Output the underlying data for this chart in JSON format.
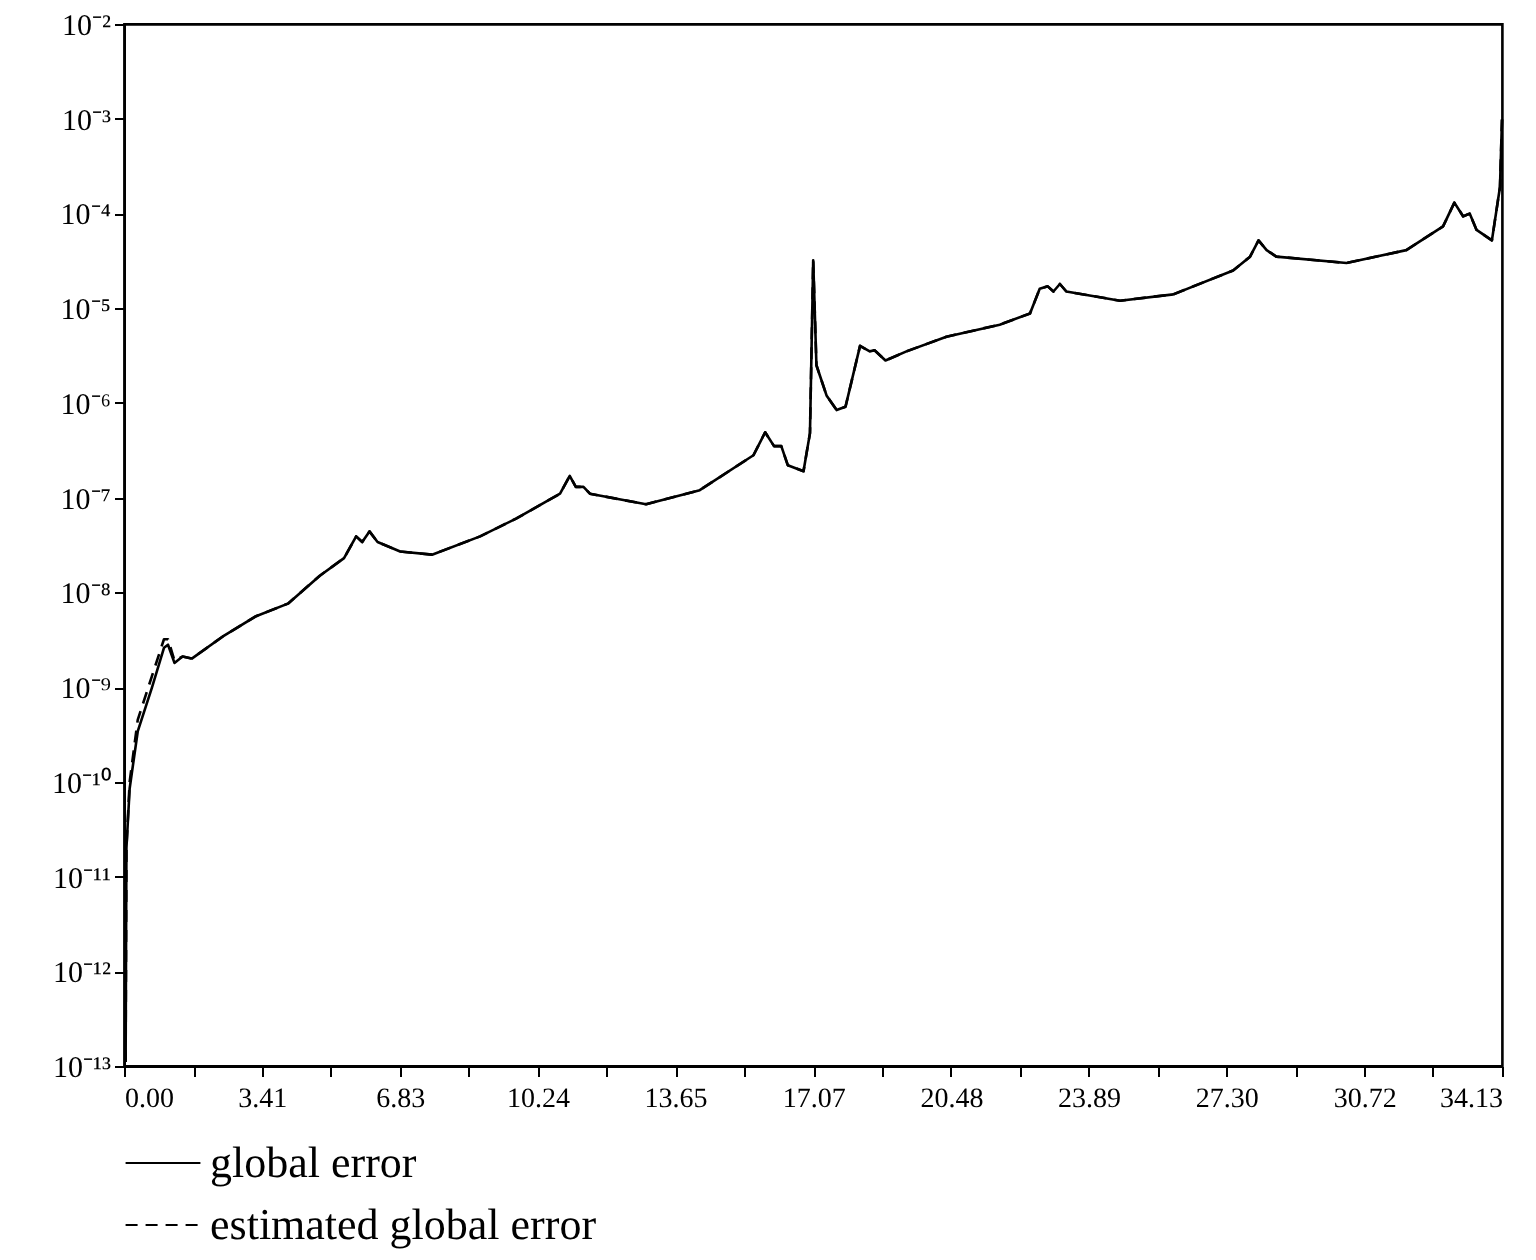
{
  "chart_data": {
    "type": "line",
    "x": [
      0.04,
      0.06,
      0.14,
      0.34,
      0.69,
      0.99,
      1.09,
      1.25,
      1.45,
      1.68,
      2.48,
      3.27,
      4.06,
      4.85,
      5.45,
      5.75,
      5.9,
      6.08,
      6.28,
      6.84,
      7.63,
      8.82,
      9.71,
      10.8,
      11.04,
      11.19,
      11.38,
      11.54,
      12.93,
      14.26,
      15.59,
      15.88,
      16.1,
      16.28,
      16.44,
      16.83,
      16.99,
      17.07,
      17.15,
      17.4,
      17.65,
      17.87,
      18.23,
      18.47,
      18.59,
      18.86,
      19.38,
      20.37,
      21.69,
      22.44,
      22.68,
      22.88,
      23.02,
      23.18,
      23.34,
      24.67,
      25.99,
      27.47,
      27.89,
      28.1,
      28.3,
      28.54,
      30.28,
      31.76,
      32.67,
      32.95,
      33.17,
      33.33,
      33.5,
      33.88,
      34.08,
      34.13
    ],
    "series": [
      {
        "name": "global error",
        "color": "#000000",
        "line_style": "solid",
        "values": [
          1.1e-13,
          2e-11,
          8.5e-11,
          3.4e-10,
          9.8e-10,
          2.6e-09,
          2.8e-09,
          1.8e-09,
          2.1e-09,
          2e-09,
          3.5e-09,
          5.6e-09,
          7.6e-09,
          1.5e-08,
          2.3e-08,
          3.9e-08,
          3.4e-08,
          4.4e-08,
          3.4e-08,
          2.7e-08,
          2.5e-08,
          3.9e-08,
          6e-08,
          1.1e-07,
          1.7e-07,
          1.3e-07,
          1.3e-07,
          1.1e-07,
          8.5e-08,
          1.2e-07,
          2.8e-07,
          4.9e-07,
          3.5e-07,
          3.5e-07,
          2.2e-07,
          1.9e-07,
          4.8e-07,
          3.2e-05,
          2.5e-06,
          1.2e-06,
          8.4e-07,
          9.1e-07,
          4e-06,
          3.5e-06,
          3.6e-06,
          2.8e-06,
          3.5e-06,
          5e-06,
          6.7e-06,
          8.8e-06,
          1.6e-05,
          1.7e-05,
          1.5e-05,
          1.8e-05,
          1.5e-05,
          1.2e-05,
          1.4e-05,
          2.5e-05,
          3.5e-05,
          5.2e-05,
          4.1e-05,
          3.5e-05,
          3e-05,
          4.1e-05,
          7.3e-05,
          0.00013,
          9.3e-05,
          0.0001,
          6.7e-05,
          5.2e-05,
          0.00019,
          0.00098
        ]
      },
      {
        "name": "estimated global error",
        "color": "#000000",
        "line_style": "dashed",
        "values": [
          1.1e-13,
          2e-11,
          1e-10,
          4.5e-10,
          1.3e-09,
          3.2e-09,
          3.2e-09,
          1.9e-09,
          2.1e-09,
          2e-09,
          3.5e-09,
          5.6e-09,
          7.6e-09,
          1.5e-08,
          2.3e-08,
          3.9e-08,
          3.4e-08,
          4.4e-08,
          3.4e-08,
          2.7e-08,
          2.5e-08,
          3.9e-08,
          6e-08,
          1.1e-07,
          1.7e-07,
          1.3e-07,
          1.3e-07,
          1.1e-07,
          8.5e-08,
          1.2e-07,
          2.8e-07,
          4.9e-07,
          3.5e-07,
          3.5e-07,
          2.2e-07,
          1.9e-07,
          4.8e-07,
          3.2e-05,
          2.5e-06,
          1.2e-06,
          8.4e-07,
          9.1e-07,
          4e-06,
          3.5e-06,
          3.6e-06,
          2.8e-06,
          3.5e-06,
          5e-06,
          6.7e-06,
          8.8e-06,
          1.6e-05,
          1.7e-05,
          1.5e-05,
          1.8e-05,
          1.5e-05,
          1.2e-05,
          1.4e-05,
          2.5e-05,
          3.5e-05,
          5.2e-05,
          4.1e-05,
          3.5e-05,
          3e-05,
          4.1e-05,
          7.3e-05,
          0.00013,
          9.3e-05,
          0.0001,
          6.7e-05,
          5.2e-05,
          0.00019,
          0.00098
        ]
      }
    ],
    "log": "y",
    "xlim": [
      0,
      34.13
    ],
    "xticks": [
      {
        "value": 0,
        "label": "0.00"
      },
      {
        "value": 1.71,
        "label": null
      },
      {
        "value": 3.41,
        "label": "3.41"
      },
      {
        "value": 5.12,
        "label": null
      },
      {
        "value": 6.83,
        "label": "6.83"
      },
      {
        "value": 8.53,
        "label": null
      },
      {
        "value": 10.24,
        "label": "10.24"
      },
      {
        "value": 11.95,
        "label": null
      },
      {
        "value": 13.65,
        "label": "13.65"
      },
      {
        "value": 15.36,
        "label": null
      },
      {
        "value": 17.07,
        "label": "17.07"
      },
      {
        "value": 18.77,
        "label": null
      },
      {
        "value": 20.48,
        "label": "20.48"
      },
      {
        "value": 22.19,
        "label": null
      },
      {
        "value": 23.89,
        "label": "23.89"
      },
      {
        "value": 25.6,
        "label": null
      },
      {
        "value": 27.3,
        "label": "27.30"
      },
      {
        "value": 29.01,
        "label": null
      },
      {
        "value": 30.72,
        "label": "30.72"
      },
      {
        "value": 32.42,
        "label": null
      },
      {
        "value": 34.13,
        "label": "34.13"
      }
    ],
    "ylim": [
      1e-13,
      0.01
    ],
    "yticks": [
      {
        "value": 1e-13,
        "label": "10⁻¹³"
      },
      {
        "value": 1e-12,
        "label": "10⁻¹²"
      },
      {
        "value": 1e-11,
        "label": "10⁻¹¹"
      },
      {
        "value": 1e-10,
        "label": "10⁻¹⁰"
      },
      {
        "value": 1e-09,
        "label": "10⁻⁹"
      },
      {
        "value": 1e-08,
        "label": "10⁻⁸"
      },
      {
        "value": 1e-07,
        "label": "10⁻⁷"
      },
      {
        "value": 1e-06,
        "label": "10⁻⁶"
      },
      {
        "value": 1e-05,
        "label": "10⁻⁵"
      },
      {
        "value": 0.0001,
        "label": "10⁻⁴"
      },
      {
        "value": 0.001,
        "label": "10⁻³"
      },
      {
        "value": 0.01,
        "label": "10⁻²"
      }
    ],
    "grid": false,
    "legend": "bottom"
  }
}
